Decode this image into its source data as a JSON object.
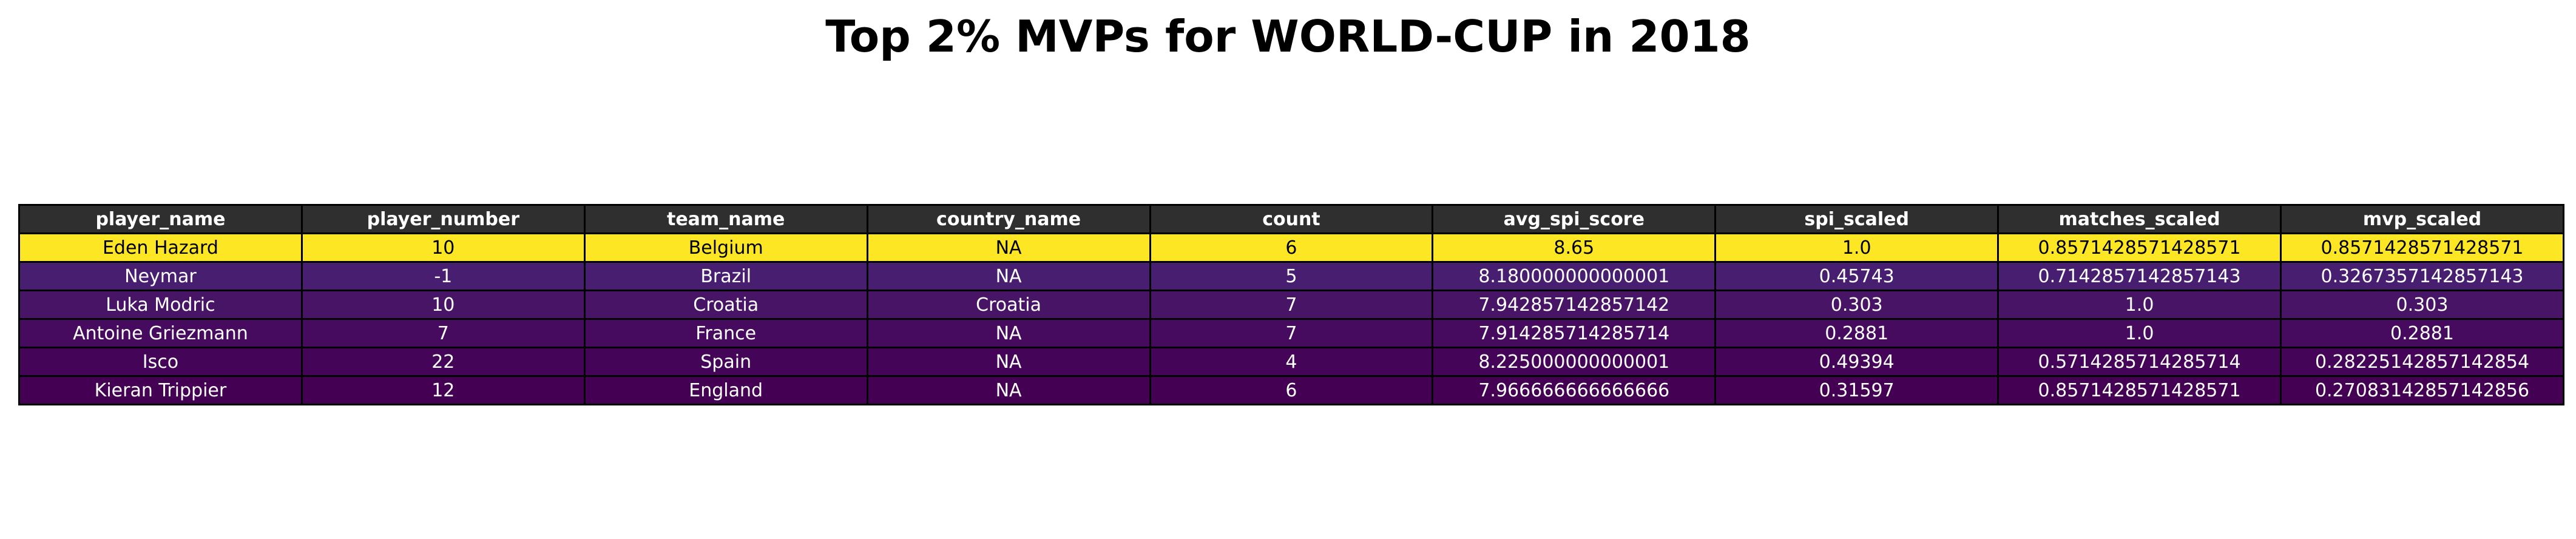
{
  "chart_data": {
    "type": "table",
    "title": "Top 2% MVPs for WORLD-CUP in 2018",
    "columns": [
      "player_name",
      "player_number",
      "team_name",
      "country_name",
      "count",
      "avg_spi_score",
      "spi_scaled",
      "matches_scaled",
      "mvp_scaled"
    ],
    "rows": [
      {
        "cells": [
          "Eden Hazard",
          "10",
          "Belgium",
          "NA",
          "6",
          "8.65",
          "1.0",
          "0.8571428571428571",
          "0.8571428571428571"
        ],
        "background": "#fde725",
        "text_color": "#000000"
      },
      {
        "cells": [
          "Neymar",
          "-1",
          "Brazil",
          "NA",
          "5",
          "8.180000000000001",
          "0.45743",
          "0.7142857142857143",
          "0.3267357142857143"
        ],
        "background": "#481f70",
        "text_color": "#ffffff"
      },
      {
        "cells": [
          "Luka Modric",
          "10",
          "Croatia",
          "Croatia",
          "7",
          "7.942857142857142",
          "0.303",
          "1.0",
          "0.303"
        ],
        "background": "#471466",
        "text_color": "#ffffff"
      },
      {
        "cells": [
          "Antoine Griezmann",
          "7",
          "France",
          "NA",
          "7",
          "7.914285714285714",
          "0.2881",
          "1.0",
          "0.2881"
        ],
        "background": "#460b5e",
        "text_color": "#ffffff"
      },
      {
        "cells": [
          "Isco",
          "22",
          "Spain",
          "NA",
          "4",
          "8.225000000000001",
          "0.49394",
          "0.5714285714285714",
          "0.28225142857142854"
        ],
        "background": "#440558",
        "text_color": "#ffffff"
      },
      {
        "cells": [
          "Kieran Trippier",
          "12",
          "England",
          "NA",
          "6",
          "7.966666666666666",
          "0.31597",
          "0.8571428571428571",
          "0.27083142857142856"
        ],
        "background": "#440154",
        "text_color": "#ffffff"
      }
    ],
    "header_background": "#2f2f2f",
    "header_text_color": "#ffffff"
  }
}
